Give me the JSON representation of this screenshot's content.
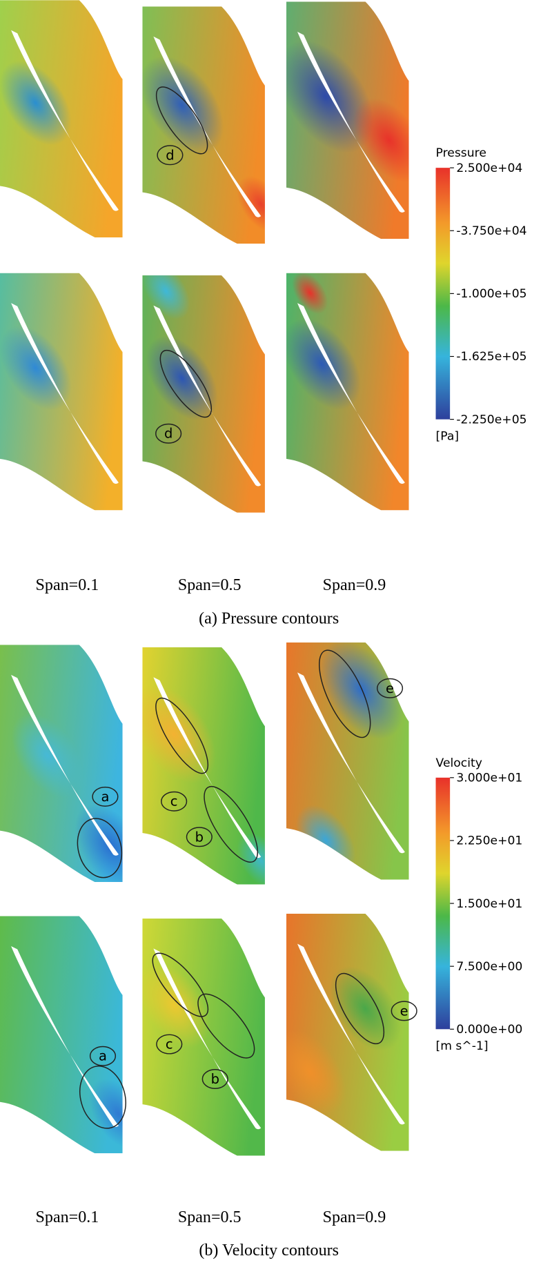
{
  "pressure": {
    "legend": {
      "title": "Pressure",
      "ticks": [
        "2.500e+04",
        "-3.750e+04",
        "-1.000e+05",
        "-1.625e+05",
        "-2.250e+05"
      ],
      "unit": "[Pa]"
    },
    "annotations": [
      "d",
      "d"
    ],
    "spans": [
      "Span=0.1",
      "Span=0.5",
      "Span=0.9"
    ],
    "caption": "(a)  Pressure  contours"
  },
  "velocity": {
    "legend": {
      "title": "Velocity",
      "ticks": [
        "3.000e+01",
        "2.250e+01",
        "1.500e+01",
        "7.500e+00",
        "0.000e+00"
      ],
      "unit": "[m s^-1]"
    },
    "annotations": [
      "e",
      "a",
      "c",
      "b",
      "a",
      "c",
      "b",
      "e"
    ],
    "spans": [
      "Span=0.1",
      "Span=0.5",
      "Span=0.9"
    ],
    "caption": "(b)  Velocity  contours"
  }
}
